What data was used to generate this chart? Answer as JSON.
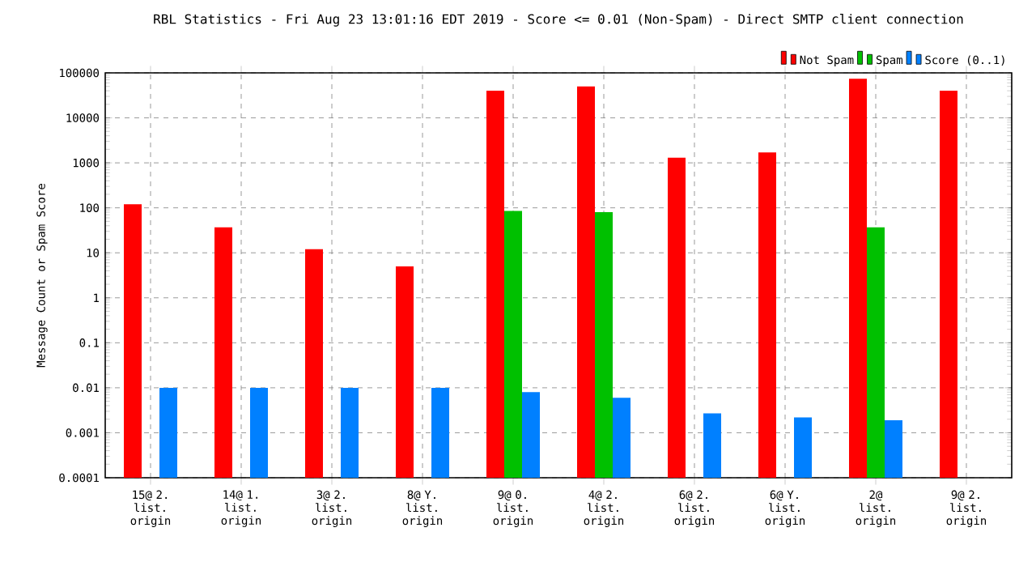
{
  "chart_data": {
    "type": "bar",
    "title": "RBL Statistics - Fri Aug 23 13:01:16 EDT 2019 - Score <= 0.01 (Non-Spam) - Direct SMTP client connection",
    "ylabel": "Message Count or Spam Score",
    "categories": [
      "15@ 2. list. origin",
      "14@ 1. list. origin",
      "3@ 2. list. origin",
      "8@ Y. list. origin",
      "9@ 0. list. origin",
      "4@ 2. list. origin",
      "6@ 2. list. origin",
      "6@ Y. list. origin",
      "2@ list. origin",
      "9@ 2. list. origin"
    ],
    "series": [
      {
        "name": "Not Spam",
        "color": "#ff0000",
        "values": [
          120,
          37,
          12,
          5,
          40000,
          50000,
          1300,
          1700,
          74000,
          40000
        ]
      },
      {
        "name": "Spam",
        "color": "#00c000",
        "values": [
          null,
          null,
          null,
          null,
          85,
          80,
          null,
          null,
          37,
          null
        ]
      },
      {
        "name": "Score (0..1)",
        "color": "#0080ff",
        "values": [
          0.01,
          0.01,
          0.01,
          0.01,
          0.008,
          0.006,
          0.0027,
          0.0022,
          0.0019,
          null
        ]
      }
    ],
    "log": "y",
    "ylim": [
      0.0001,
      100000
    ],
    "yticks": [
      0.0001,
      0.001,
      0.01,
      0.1,
      1,
      10,
      100,
      1000,
      10000,
      100000
    ],
    "grid": true,
    "legend": "top right"
  }
}
